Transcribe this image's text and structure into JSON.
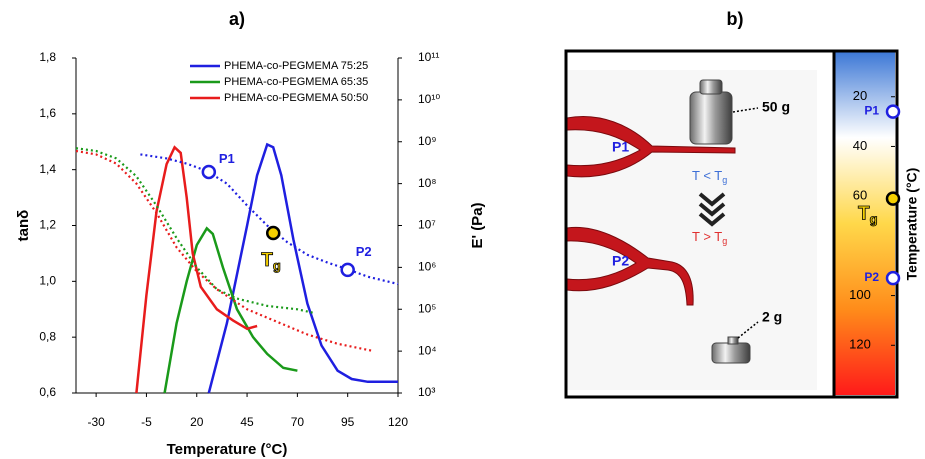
{
  "chart_data": [
    {
      "type": "line",
      "title": "a)",
      "xlabel": "Temperature (°C)",
      "ylabel": "tanδ",
      "y2label": "E' (Pa)",
      "xlim": [
        -40,
        120
      ],
      "xticks": [
        -30,
        -5,
        20,
        45,
        70,
        95,
        120
      ],
      "ylim": [
        0.6,
        1.8
      ],
      "yticks": [
        {
          "value": 0.6,
          "label": "0,6"
        },
        {
          "value": 0.8,
          "label": "0,8"
        },
        {
          "value": 1.0,
          "label": "1,0"
        },
        {
          "value": 1.2,
          "label": "1,2"
        },
        {
          "value": 1.4,
          "label": "1,4"
        },
        {
          "value": 1.6,
          "label": "1,6"
        },
        {
          "value": 1.8,
          "label": "1,8"
        }
      ],
      "y2lim": [
        1000,
        100000000000
      ],
      "y2scale": "log",
      "y2ticks": [
        {
          "value": 1000,
          "label": "10³"
        },
        {
          "value": 10000,
          "label": "10⁴"
        },
        {
          "value": 100000,
          "label": "10⁵"
        },
        {
          "value": 1000000,
          "label": "10⁶"
        },
        {
          "value": 10000000,
          "label": "10⁷"
        },
        {
          "value": 100000000,
          "label": "10⁸"
        },
        {
          "value": 1000000000,
          "label": "10⁹"
        },
        {
          "value": 10000000000,
          "label": "10¹⁰"
        },
        {
          "value": 100000000000,
          "label": "10¹¹"
        }
      ],
      "legend": "upper right",
      "series": [
        {
          "name": "PHEMA-co-PEGMEMA 75:25",
          "color": "#1f1fe0",
          "style": "solid",
          "x": [
            26,
            35,
            45,
            50,
            55,
            58,
            62,
            68,
            75,
            82,
            90,
            97,
            105,
            120
          ],
          "values": [
            0.6,
            0.85,
            1.2,
            1.38,
            1.49,
            1.48,
            1.38,
            1.15,
            0.92,
            0.77,
            0.68,
            0.65,
            0.64,
            0.64
          ]
        },
        {
          "name": "PHEMA-co-PEGMEMA 65:35",
          "color": "#1a9a1a",
          "style": "solid",
          "x": [
            4,
            10,
            15,
            20,
            25,
            28,
            33,
            40,
            48,
            55,
            63,
            70
          ],
          "values": [
            0.6,
            0.85,
            1.0,
            1.13,
            1.19,
            1.17,
            1.05,
            0.9,
            0.8,
            0.74,
            0.69,
            0.68
          ]
        },
        {
          "name": "PHEMA-co-PEGMEMA 50:50",
          "color": "#e81c1c",
          "style": "solid",
          "x": [
            -10,
            -5,
            0,
            5,
            9,
            12,
            15,
            18,
            22,
            30,
            38,
            45,
            50
          ],
          "values": [
            0.6,
            0.95,
            1.25,
            1.42,
            1.48,
            1.46,
            1.3,
            1.1,
            0.98,
            0.9,
            0.86,
            0.83,
            0.84
          ]
        },
        {
          "color": "#1f1fe0",
          "style": "dotted",
          "axis": "y2",
          "x": [
            -8,
            5,
            15,
            25,
            35,
            45,
            55,
            65,
            75,
            85,
            95,
            105,
            120
          ],
          "values": [
            500000000,
            400000000,
            300000000,
            200000000,
            100000000,
            30000000,
            10000000,
            4000000,
            2000000,
            1300000,
            900000,
            600000,
            400000
          ]
        },
        {
          "color": "#1a9a1a",
          "style": "dotted",
          "axis": "y2",
          "x": [
            -40,
            -30,
            -20,
            -10,
            0,
            10,
            20,
            30,
            40,
            55,
            70,
            79
          ],
          "values": [
            700000000,
            600000000,
            400000000,
            150000000,
            30000000,
            5000000,
            1000000,
            300000,
            180000,
            120000,
            100000,
            80000
          ]
        },
        {
          "color": "#e81c1c",
          "style": "dotted",
          "axis": "y2",
          "x": [
            -40,
            -30,
            -20,
            -10,
            0,
            10,
            20,
            30,
            45,
            60,
            75,
            90,
            108
          ],
          "values": [
            600000000,
            500000000,
            300000000,
            100000000,
            20000000,
            3000000,
            800000,
            300000,
            100000,
            50000,
            25000,
            15000,
            10000
          ]
        }
      ],
      "markers": [
        {
          "label": "P1",
          "x": 26,
          "y": 190000000,
          "color": "#1f1fe0",
          "fill": "#ffffff"
        },
        {
          "label": "T",
          "subscript": "g",
          "x": 58,
          "y": 6600000,
          "color": "#000000",
          "fill": "#f5d000"
        },
        {
          "label": "P2",
          "x": 95,
          "y": 870000,
          "color": "#1f1fe0",
          "fill": "#ffffff"
        }
      ]
    },
    {
      "type": "colorbar",
      "title": "b)",
      "ylabel": "Temperature (°C)",
      "ylim": [
        2,
        140
      ],
      "yticks": [
        20,
        40,
        60,
        100,
        120
      ],
      "colors": [
        "#3d78d6",
        "#ffffff",
        "#ffd84a",
        "#ff8c1a",
        "#ff1a1a"
      ],
      "markers": [
        {
          "label": "P1",
          "y": 26,
          "color": "#1f1fe0",
          "fill": "#ffffff"
        },
        {
          "label": "T",
          "subscript": "g",
          "y": 61,
          "color": "#000000",
          "fill": "#f5d000"
        },
        {
          "label": "P2",
          "y": 93,
          "color": "#1f1fe0",
          "fill": "#ffffff"
        }
      ],
      "photo": {
        "p1": "P1",
        "p2": "P2",
        "weight_large": "50 g",
        "weight_small": "2 g",
        "conditions": [
          {
            "text": "T < T",
            "subscript": "g"
          },
          {
            "text": "T > T",
            "subscript": "g"
          }
        ]
      }
    }
  ]
}
